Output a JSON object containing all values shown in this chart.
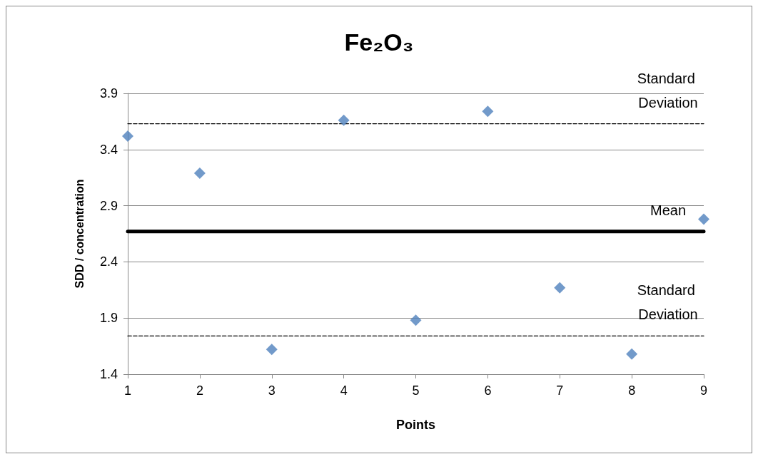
{
  "chart_data": {
    "type": "scatter",
    "title": "Fe₂O₃",
    "xlabel": "Points",
    "ylabel": "SDD / concentration",
    "x": [
      1,
      2,
      3,
      4,
      5,
      6,
      7,
      8,
      9
    ],
    "series": [
      {
        "color": "#4f81bd",
        "values": [
          3.52,
          3.19,
          1.62,
          3.66,
          1.88,
          3.74,
          2.17,
          1.58,
          2.78
        ]
      }
    ],
    "xlim": [
      1,
      9
    ],
    "xticks": [
      1,
      2,
      3,
      4,
      5,
      6,
      7,
      8,
      9
    ],
    "ylim": [
      1.4,
      3.9
    ],
    "yticks": [
      1.4,
      1.9,
      2.4,
      2.9,
      3.4,
      3.9
    ],
    "grid": "y",
    "marker": "diamond",
    "ref_lines": [
      {
        "axis": "y",
        "value": 3.63,
        "label": "Standard Deviation",
        "color": "#000000",
        "line_style": "dashed"
      },
      {
        "axis": "y",
        "value": 2.67,
        "label": "Mean",
        "color": "#000000",
        "line_style": "solid"
      },
      {
        "axis": "y",
        "value": 1.74,
        "label": "Standard Deviation",
        "color": "#000000",
        "line_style": "dashed"
      }
    ]
  }
}
